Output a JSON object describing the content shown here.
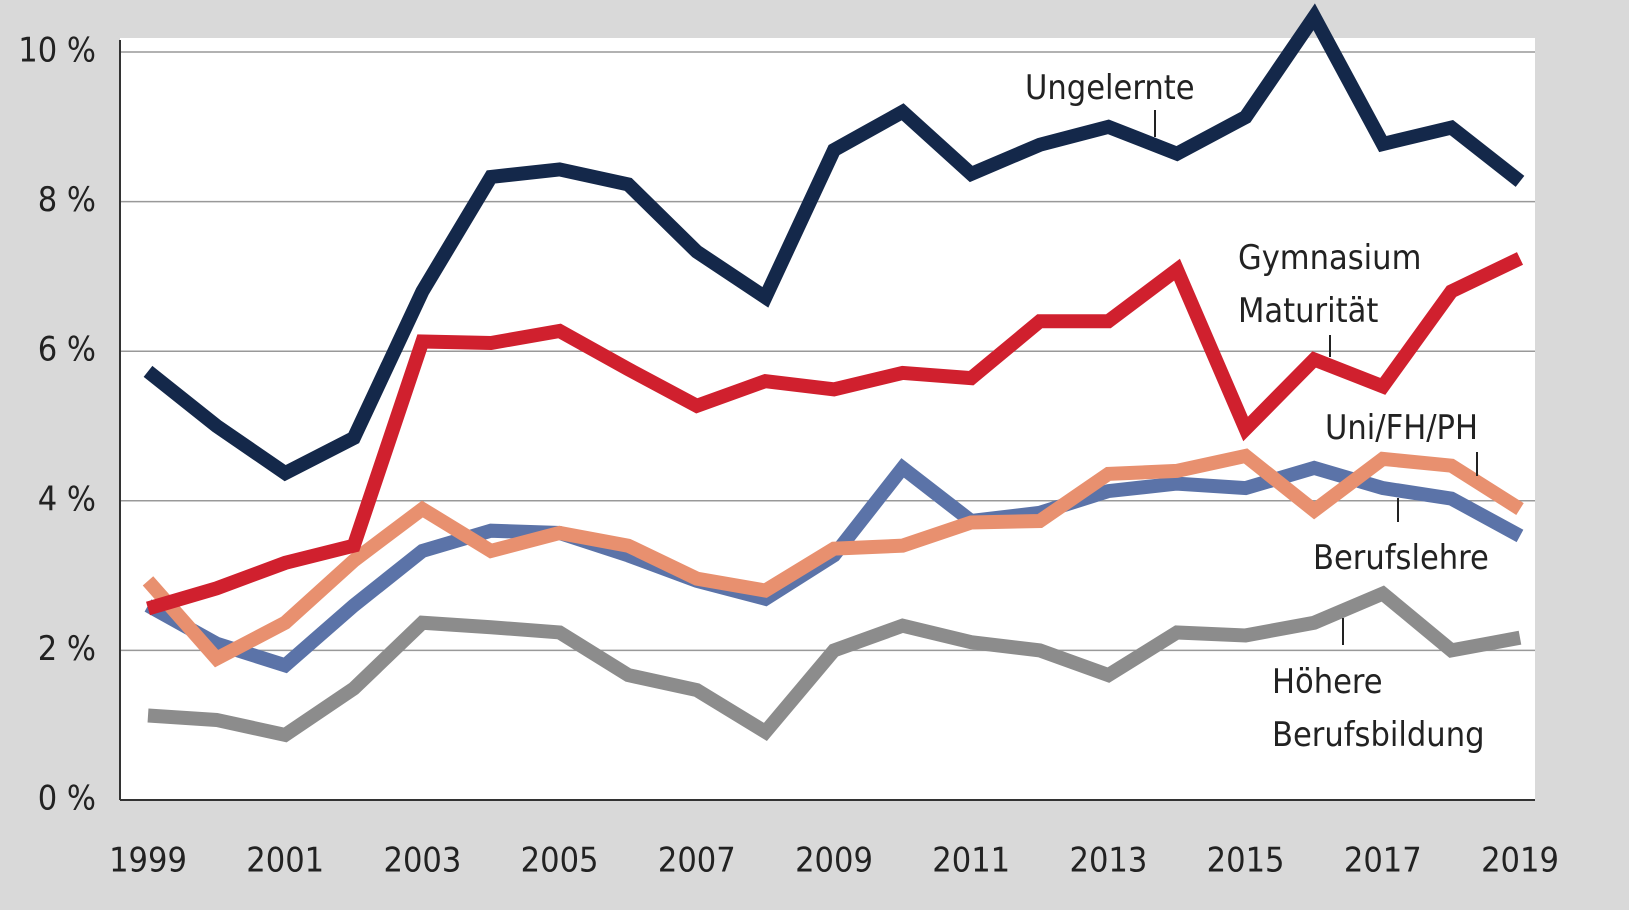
{
  "chart_data": {
    "type": "line",
    "x": [
      1999,
      2000,
      2001,
      2002,
      2003,
      2004,
      2005,
      2006,
      2007,
      2008,
      2009,
      2010,
      2011,
      2012,
      2013,
      2014,
      2015,
      2016,
      2017,
      2018,
      2019
    ],
    "xlim": [
      1999,
      2019
    ],
    "xticks": [
      1999,
      2001,
      2003,
      2005,
      2007,
      2009,
      2011,
      2013,
      2015,
      2017,
      2019
    ],
    "ylim": [
      0,
      10
    ],
    "yticks": [
      {
        "value": 0,
        "label": "0 %"
      },
      {
        "value": 2,
        "label": "2 %"
      },
      {
        "value": 4,
        "label": "4 %"
      },
      {
        "value": 6,
        "label": "6 %"
      },
      {
        "value": 8,
        "label": "8 %"
      },
      {
        "value": 10,
        "label": "10 %"
      }
    ],
    "grid": true,
    "series": [
      {
        "name": "Ungelernte",
        "color": "#14284a",
        "values": [
          5.73,
          5.0,
          4.37,
          4.84,
          6.8,
          8.33,
          8.43,
          8.23,
          7.33,
          6.72,
          8.69,
          9.2,
          8.37,
          8.76,
          9.0,
          8.64,
          9.13,
          10.47,
          8.77,
          8.99,
          8.27
        ]
      },
      {
        "name": "Gymnasium\nMaturität",
        "color": "#d0202e",
        "values": [
          2.56,
          2.83,
          3.17,
          3.4,
          6.13,
          6.11,
          6.27,
          5.76,
          5.27,
          5.6,
          5.49,
          5.71,
          5.64,
          6.4,
          6.4,
          7.09,
          4.96,
          5.89,
          5.53,
          6.8,
          7.24
        ]
      },
      {
        "name": "Uni/FH/PH",
        "color": "#e8906f",
        "values": [
          2.93,
          1.89,
          2.37,
          3.2,
          3.89,
          3.33,
          3.57,
          3.4,
          2.96,
          2.8,
          3.36,
          3.4,
          3.71,
          3.73,
          4.36,
          4.4,
          4.6,
          3.87,
          4.56,
          4.47,
          3.89
        ]
      },
      {
        "name": "Berufslehre",
        "color": "#5b73a8",
        "values": [
          2.6,
          2.09,
          1.8,
          2.6,
          3.33,
          3.6,
          3.57,
          3.27,
          2.93,
          2.69,
          3.27,
          4.44,
          3.73,
          3.84,
          4.13,
          4.23,
          4.17,
          4.44,
          4.17,
          4.03,
          3.53
        ]
      },
      {
        "name": "Höhere\nBerufsbildung",
        "color": "#8c8c8c",
        "values": [
          1.13,
          1.07,
          0.87,
          1.49,
          2.37,
          2.31,
          2.24,
          1.67,
          1.47,
          0.91,
          2.0,
          2.33,
          2.11,
          2.0,
          1.67,
          2.24,
          2.2,
          2.37,
          2.76,
          2.0,
          2.17
        ]
      }
    ]
  }
}
